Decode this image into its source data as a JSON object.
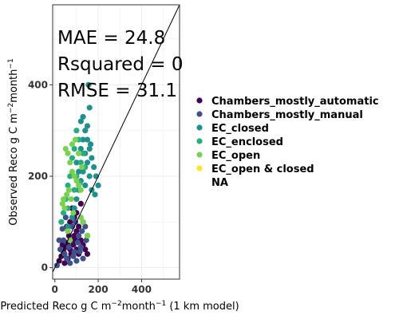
{
  "chart_data": {
    "type": "scatter",
    "xlabel_prefix": "Predicted Reco g C m",
    "xlabel_sup1": "−2",
    "xlabel_mid": "month",
    "xlabel_sup2": "−1",
    "xlabel_suffix": " (1 km model)",
    "ylabel_prefix": "Observed Reco g C m",
    "ylabel_sup1": "−2",
    "ylabel_mid": "month",
    "ylabel_sup2": "−1",
    "xlim": [
      -10,
      575
    ],
    "ylim": [
      -25,
      575
    ],
    "xticks": [
      0,
      200,
      400
    ],
    "yticks": [
      0,
      200,
      400
    ],
    "grid": true,
    "reference_line": "1:1",
    "annotations": [
      "MAE = 24.8",
      "Rsquared = 0",
      "RMSE = 31.1"
    ],
    "legend_position": "right",
    "series": [
      {
        "name": "Chambers_mostly_automatic",
        "color": "#440154",
        "points": [
          [
            20,
            15
          ],
          [
            30,
            25
          ],
          [
            40,
            35
          ],
          [
            50,
            45
          ],
          [
            60,
            55
          ],
          [
            70,
            40
          ],
          [
            80,
            60
          ],
          [
            90,
            70
          ],
          [
            100,
            80
          ],
          [
            110,
            90
          ],
          [
            120,
            60
          ],
          [
            130,
            50
          ],
          [
            140,
            40
          ],
          [
            150,
            30
          ],
          [
            100,
            40
          ],
          [
            110,
            30
          ],
          [
            60,
            20
          ],
          [
            45,
            10
          ],
          [
            70,
            100
          ],
          [
            90,
            110
          ],
          [
            80,
            130
          ],
          [
            100,
            120
          ],
          [
            120,
            140
          ],
          [
            130,
            100
          ],
          [
            85,
            50
          ],
          [
            95,
            60
          ],
          [
            75,
            30
          ],
          [
            65,
            70
          ],
          [
            55,
            90
          ],
          [
            35,
            50
          ]
        ]
      },
      {
        "name": "Chambers_mostly_manual",
        "color": "#3B528B",
        "points": [
          [
            10,
            5
          ],
          [
            25,
            40
          ],
          [
            40,
            60
          ],
          [
            55,
            20
          ],
          [
            70,
            10
          ],
          [
            85,
            25
          ],
          [
            100,
            15
          ],
          [
            115,
            35
          ],
          [
            130,
            20
          ],
          [
            145,
            60
          ],
          [
            60,
            80
          ],
          [
            80,
            90
          ],
          [
            95,
            100
          ],
          [
            110,
            70
          ],
          [
            125,
            80
          ],
          [
            50,
            110
          ],
          [
            35,
            85
          ],
          [
            20,
            60
          ],
          [
            140,
            90
          ],
          [
            150,
            70
          ],
          [
            45,
            30
          ],
          [
            65,
            45
          ],
          [
            90,
            35
          ],
          [
            105,
            55
          ],
          [
            120,
            45
          ]
        ]
      },
      {
        "name": "EC_closed",
        "color": "#21908C",
        "points": [
          [
            120,
            320
          ],
          [
            130,
            330
          ],
          [
            140,
            300
          ],
          [
            150,
            280
          ],
          [
            160,
            260
          ],
          [
            170,
            240
          ],
          [
            180,
            220
          ],
          [
            190,
            200
          ],
          [
            200,
            180
          ],
          [
            140,
            250
          ],
          [
            150,
            230
          ],
          [
            130,
            210
          ],
          [
            120,
            190
          ],
          [
            110,
            170
          ],
          [
            100,
            150
          ],
          [
            90,
            130
          ],
          [
            80,
            110
          ],
          [
            60,
            90
          ],
          [
            140,
            180
          ],
          [
            160,
            200
          ],
          [
            170,
            170
          ],
          [
            185,
            160
          ],
          [
            100,
            230
          ],
          [
            110,
            210
          ],
          [
            120,
            260
          ],
          [
            130,
            280
          ],
          [
            150,
            310
          ],
          [
            155,
            400
          ],
          [
            160,
            350
          ],
          [
            165,
            270
          ]
        ]
      },
      {
        "name": "EC_enclosed",
        "color": "#27AD81",
        "points": [
          [
            90,
            260
          ],
          [
            100,
            300
          ],
          [
            110,
            280
          ],
          [
            80,
            240
          ],
          [
            70,
            200
          ],
          [
            60,
            180
          ],
          [
            50,
            150
          ],
          [
            40,
            120
          ],
          [
            30,
            100
          ],
          [
            100,
            200
          ],
          [
            120,
            230
          ],
          [
            130,
            250
          ],
          [
            90,
            170
          ],
          [
            60,
            130
          ],
          [
            140,
            220
          ],
          [
            115,
            185
          ]
        ]
      },
      {
        "name": "EC_open",
        "color": "#7AD151",
        "points": [
          [
            50,
            260
          ],
          [
            60,
            250
          ],
          [
            70,
            230
          ],
          [
            80,
            210
          ],
          [
            90,
            200
          ],
          [
            100,
            190
          ],
          [
            110,
            180
          ],
          [
            120,
            170
          ],
          [
            40,
            150
          ],
          [
            45,
            130
          ],
          [
            55,
            160
          ],
          [
            65,
            170
          ],
          [
            35,
            140
          ],
          [
            75,
            150
          ],
          [
            85,
            120
          ],
          [
            120,
            110
          ],
          [
            130,
            100
          ],
          [
            150,
            70
          ],
          [
            60,
            80
          ],
          [
            70,
            60
          ],
          [
            80,
            270
          ],
          [
            95,
            280
          ],
          [
            110,
            250
          ],
          [
            125,
            220
          ]
        ]
      },
      {
        "name": "EC_open & closed",
        "color": "#FDE725",
        "points": []
      },
      {
        "name": "NA",
        "color": "",
        "points": []
      }
    ]
  }
}
